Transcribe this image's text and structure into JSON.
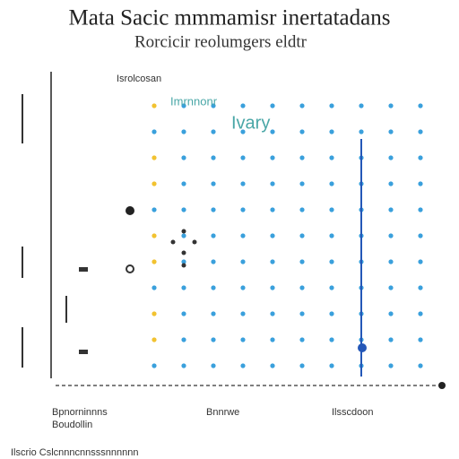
{
  "header": {
    "title": "Mata Sacic mmmamisr inertatadans",
    "subtitle": "Rorcicir reolumgers eldtr"
  },
  "plot": {
    "label": "Isrolcosan",
    "annotation": "Ivary",
    "note": "Imrnnonr"
  },
  "footer": {
    "labels": [
      "Bpnorninnns",
      "Boudollin",
      "Bnnrwe",
      "Ilsscdoon"
    ],
    "note": "Ilscrio Cslcnnncnnsssnnnnnn"
  }
}
